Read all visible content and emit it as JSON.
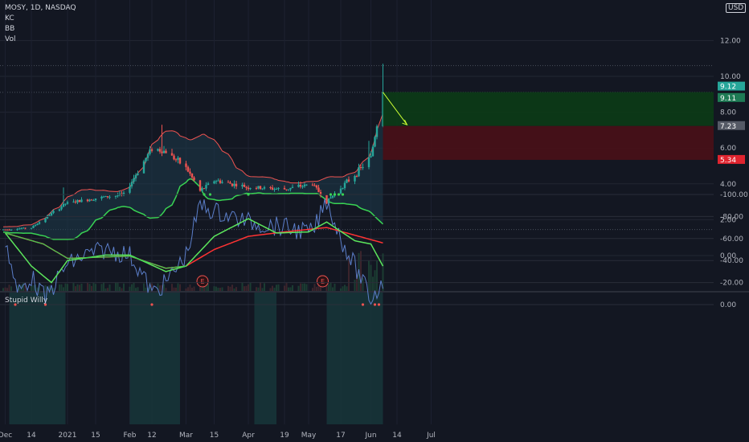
{
  "header": {
    "symbol_line": "MOSY, 1D, NASDAQ",
    "indicators": [
      "KC",
      "BB",
      "Vol"
    ],
    "currency": "USD"
  },
  "lower_pane": {
    "title": "Stupid Willy"
  },
  "colors": {
    "background": "#131722",
    "up": "#26a69a",
    "down": "#ef5350",
    "green_line": "#4caf50",
    "red_line": "#ff3333",
    "oscillator": "#5b7ec9",
    "profit_zone": "#0c3b16",
    "loss_zone": "#4a1017"
  },
  "chart_data": [
    {
      "type": "candlestick",
      "title": "MOSY, 1D, NASDAQ",
      "x_tick_labels": [
        "Dec",
        "14",
        "2021",
        "15",
        "Feb",
        "12",
        "Mar",
        "15",
        "Apr",
        "19",
        "May",
        "17",
        "Jun",
        "14",
        "Jul"
      ],
      "y_ticks": [
        0.0,
        2.0,
        4.0,
        6.0,
        8.0,
        10.0,
        12.0
      ],
      "y_tick_labels": [
        "0.00",
        "2.00",
        "4.00",
        "6.00",
        "8.00",
        "10.00",
        "12.00"
      ],
      "ylim": [
        -1.0,
        13.8
      ],
      "price_labels": [
        {
          "value": 9.12,
          "label": "9.12",
          "color": "#26a69a"
        },
        {
          "value": 9.11,
          "label": "9.11",
          "color": "#1e7b55"
        },
        {
          "value": 7.23,
          "label": "7.23",
          "color": "#555a66"
        },
        {
          "value": 5.34,
          "label": "5.34",
          "color": "#e0242f"
        }
      ],
      "position": {
        "entry": 7.23,
        "target": 9.12,
        "stop": 5.34
      },
      "earnings_markers": [
        "E",
        "E"
      ],
      "candle_anchors_date_price": [
        [
          "2020-12-01",
          1.45
        ],
        [
          "2020-12-14",
          1.55
        ],
        [
          "2020-12-31",
          2.9
        ],
        [
          "2021-01-15",
          3.2
        ],
        [
          "2021-01-29",
          3.4
        ],
        [
          "2021-02-12",
          6.0
        ],
        [
          "2021-02-19",
          5.8
        ],
        [
          "2021-03-01",
          4.9
        ],
        [
          "2021-03-08",
          3.6
        ],
        [
          "2021-03-15",
          4.2
        ],
        [
          "2021-04-01",
          3.8
        ],
        [
          "2021-04-19",
          3.7
        ],
        [
          "2021-05-03",
          4.0
        ],
        [
          "2021-05-10",
          3.0
        ],
        [
          "2021-05-17",
          3.8
        ],
        [
          "2021-05-24",
          4.5
        ],
        [
          "2021-06-01",
          5.5
        ],
        [
          "2021-06-07",
          9.11
        ]
      ]
    },
    {
      "type": "line",
      "title": "Stupid Willy",
      "y_ticks": [
        0,
        -20,
        -40,
        -60,
        -80,
        -100
      ],
      "y_tick_labels": [
        "0.00",
        "-20.00",
        "-40.00",
        "-60.00",
        "-80.00",
        "-100.00"
      ],
      "ylim": [
        -105,
        5
      ],
      "series": [
        {
          "key": "oscillator",
          "anchors_date_value": [
            [
              "2020-12-01",
              -60
            ],
            [
              "2020-12-07",
              -10
            ],
            [
              "2020-12-14",
              -25
            ],
            [
              "2020-12-21",
              -5
            ],
            [
              "2020-12-31",
              -35
            ],
            [
              "2021-01-10",
              -45
            ],
            [
              "2021-01-20",
              -50
            ],
            [
              "2021-02-01",
              -45
            ],
            [
              "2021-02-08",
              -25
            ],
            [
              "2021-02-12",
              -10
            ],
            [
              "2021-02-19",
              -20
            ],
            [
              "2021-03-01",
              -45
            ],
            [
              "2021-03-08",
              -90
            ],
            [
              "2021-03-15",
              -85
            ],
            [
              "2021-04-01",
              -75
            ],
            [
              "2021-04-19",
              -70
            ],
            [
              "2021-05-03",
              -65
            ],
            [
              "2021-05-10",
              -95
            ],
            [
              "2021-05-17",
              -60
            ],
            [
              "2021-05-24",
              -35
            ],
            [
              "2021-06-01",
              -5
            ],
            [
              "2021-06-07",
              -20
            ]
          ]
        },
        {
          "key": "ma_green",
          "anchors_date_value": [
            [
              "2020-12-01",
              -65
            ],
            [
              "2020-12-14",
              -35
            ],
            [
              "2020-12-24",
              -20
            ],
            [
              "2021-01-01",
              -40
            ],
            [
              "2021-01-20",
              -45
            ],
            [
              "2021-02-01",
              -45
            ],
            [
              "2021-02-19",
              -30
            ],
            [
              "2021-03-01",
              -35
            ],
            [
              "2021-03-15",
              -62
            ],
            [
              "2021-04-01",
              -78
            ],
            [
              "2021-04-15",
              -65
            ],
            [
              "2021-05-01",
              -66
            ],
            [
              "2021-05-10",
              -75
            ],
            [
              "2021-05-24",
              -58
            ],
            [
              "2021-06-01",
              -55
            ],
            [
              "2021-06-07",
              -35
            ]
          ]
        },
        {
          "key": "ma_slow",
          "anchors_date_value": [
            [
              "2020-12-01",
              -65
            ],
            [
              "2020-12-20",
              -55
            ],
            [
              "2021-01-01",
              -42
            ],
            [
              "2021-02-01",
              -44
            ],
            [
              "2021-02-19",
              -33
            ],
            [
              "2021-03-01",
              -35
            ],
            [
              "2021-03-15",
              -50
            ],
            [
              "2021-04-01",
              -62
            ],
            [
              "2021-04-19",
              -66
            ],
            [
              "2021-05-10",
              -70
            ],
            [
              "2021-05-24",
              -63
            ],
            [
              "2021-06-07",
              -56
            ]
          ]
        }
      ]
    }
  ]
}
